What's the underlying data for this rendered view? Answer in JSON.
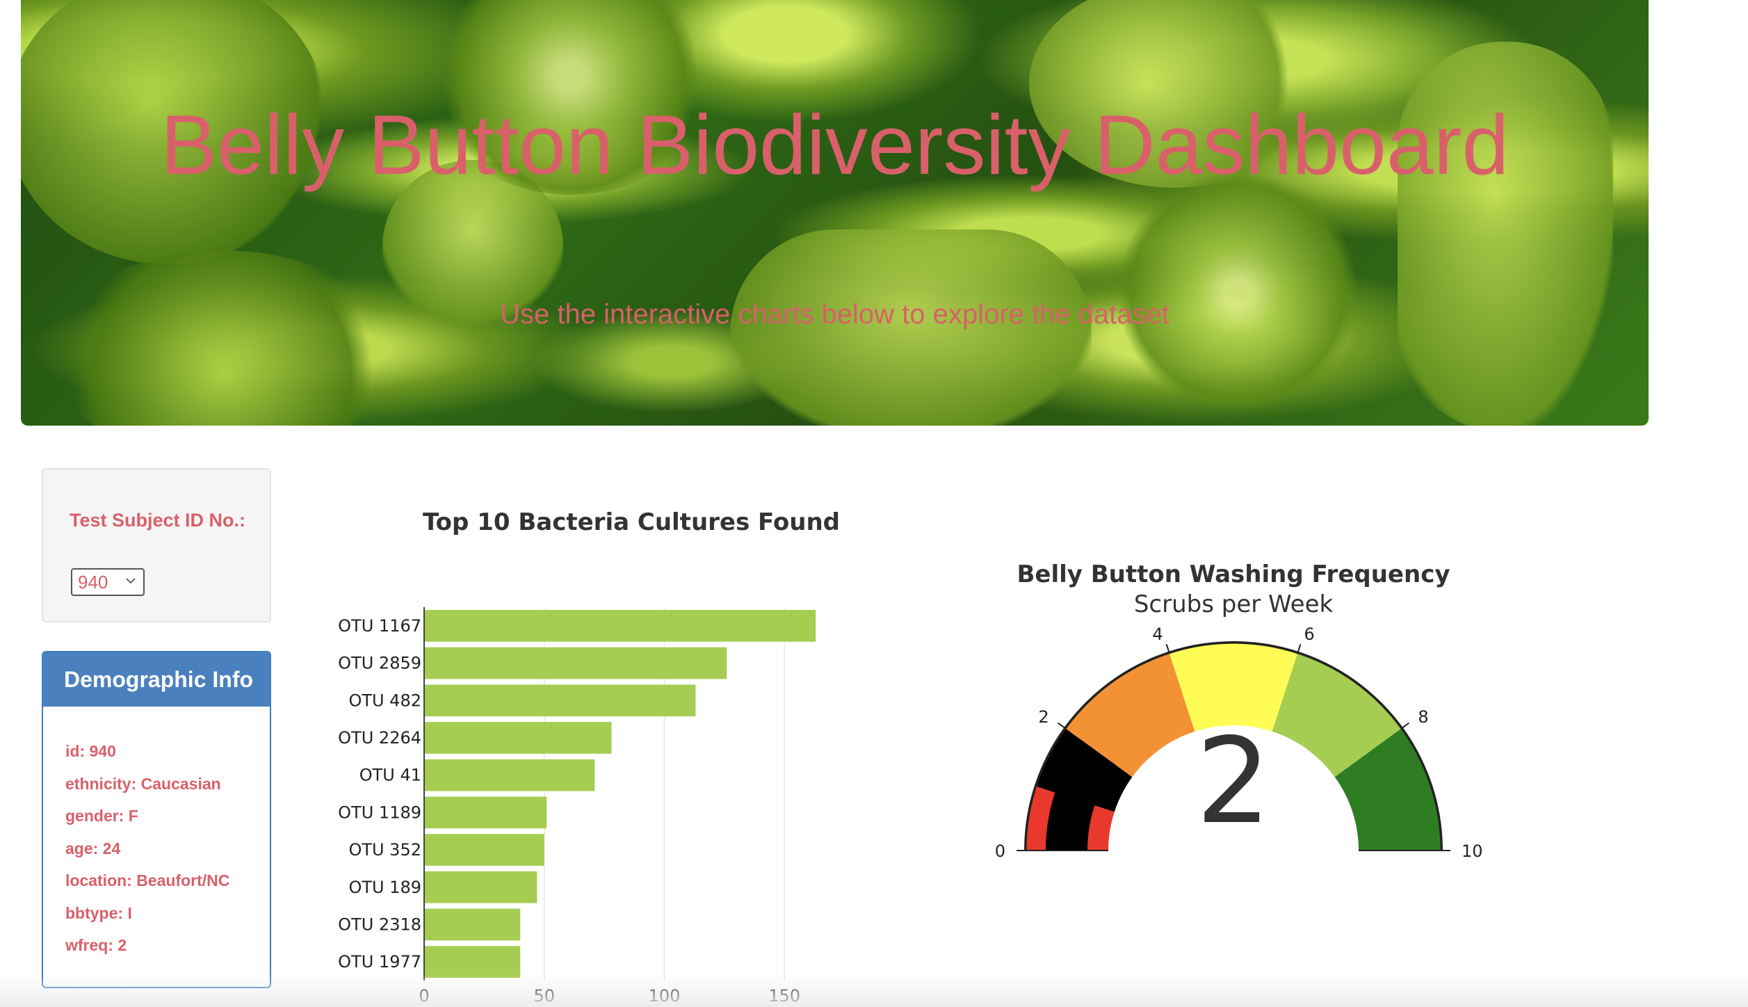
{
  "hero": {
    "title": "Belly Button Biodiversity Dashboard",
    "subtitle": "Use the interactive charts below to explore the dataset"
  },
  "selector": {
    "label": "Test Subject ID No.:",
    "selected": "940",
    "chevron_icon": "chevron-down-icon"
  },
  "demographics": {
    "heading": "Demographic Info",
    "items": [
      "id: 940",
      "ethnicity: Caucasian",
      "gender: F",
      "age: 24",
      "location: Beaufort/NC",
      "bbtype: I",
      "wfreq: 2"
    ]
  },
  "colors": {
    "title_red": "#d9606a",
    "panel_blue": "#4a80bd",
    "bar_green": "#a5cd52",
    "gauge_steps": [
      "#e8392c",
      "#000000",
      "#e8392c",
      "#f39235",
      "#fffd55",
      "#a5cd52",
      "#2f7d23"
    ]
  },
  "chart_data": [
    {
      "type": "bar",
      "orientation": "horizontal",
      "title": "Top 10 Bacteria Cultures Found",
      "categories": [
        "OTU 1167",
        "OTU 2859",
        "OTU 482",
        "OTU 2264",
        "OTU 41",
        "OTU 1189",
        "OTU 352",
        "OTU 189",
        "OTU 2318",
        "OTU 1977"
      ],
      "values": [
        163,
        126,
        113,
        78,
        71,
        51,
        50,
        47,
        40,
        40
      ],
      "xlim": [
        0,
        165
      ],
      "xticks": [
        0,
        50,
        100,
        150
      ],
      "grid": true,
      "color": "#a5cd52"
    },
    {
      "type": "gauge",
      "title": "Belly Button Washing Frequency",
      "subtitle": "Scrubs per Week",
      "value": 2,
      "range": [
        0,
        10
      ],
      "ticks": [
        0,
        2,
        4,
        6,
        8,
        10
      ],
      "steps": [
        {
          "range": [
            0,
            1
          ],
          "color": "#e8392c"
        },
        {
          "range": [
            1,
            2
          ],
          "color": "#000000"
        },
        {
          "range": [
            2,
            4
          ],
          "color": "#f39235"
        },
        {
          "range": [
            4,
            6
          ],
          "color": "#fffd55"
        },
        {
          "range": [
            6,
            8
          ],
          "color": "#a5cd52"
        },
        {
          "range": [
            8,
            10
          ],
          "color": "#2f7d23"
        }
      ]
    }
  ]
}
